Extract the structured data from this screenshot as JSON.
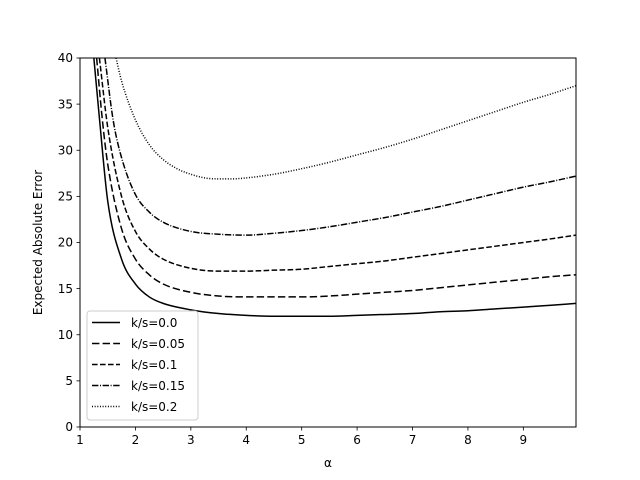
{
  "chart_data": {
    "type": "line",
    "title": "",
    "xlabel": "α",
    "ylabel": "Expected Absolute Error",
    "xlim": [
      1,
      9.95
    ],
    "ylim": [
      0,
      40
    ],
    "xticks": [
      1,
      2,
      3,
      4,
      5,
      6,
      7,
      8,
      9
    ],
    "yticks": [
      0,
      5,
      10,
      15,
      20,
      25,
      30,
      35,
      40
    ],
    "x_tick_labels": [
      "1",
      "2",
      "3",
      "4",
      "5",
      "6",
      "7",
      "8",
      "9"
    ],
    "y_tick_labels": [
      "0",
      "5",
      "10",
      "15",
      "20",
      "25",
      "30",
      "35",
      "40"
    ],
    "grid": false,
    "legend_position": "lower-left",
    "line_color": "#000000",
    "series": [
      {
        "name": "k/s=0.0",
        "style": "solid",
        "points": [
          [
            1.25,
            40
          ],
          [
            1.35,
            33.5
          ],
          [
            1.5,
            24.5
          ],
          [
            1.75,
            18.2
          ],
          [
            2,
            15.5
          ],
          [
            2.25,
            14.1
          ],
          [
            2.5,
            13.4
          ],
          [
            3,
            12.7
          ],
          [
            3.5,
            12.3
          ],
          [
            4,
            12.1
          ],
          [
            4.5,
            12.0
          ],
          [
            5,
            12.0
          ],
          [
            5.5,
            12.0
          ],
          [
            6,
            12.1
          ],
          [
            6.5,
            12.2
          ],
          [
            7,
            12.3
          ],
          [
            7.5,
            12.5
          ],
          [
            8,
            12.6
          ],
          [
            8.5,
            12.8
          ],
          [
            9,
            13.0
          ],
          [
            9.5,
            13.2
          ],
          [
            9.95,
            13.4
          ]
        ]
      },
      {
        "name": "k/s=0.05",
        "style": "dashed",
        "points": [
          [
            1.3,
            40
          ],
          [
            1.4,
            33.5
          ],
          [
            1.5,
            28.5
          ],
          [
            1.75,
            21.5
          ],
          [
            2,
            18.2
          ],
          [
            2.25,
            16.5
          ],
          [
            2.5,
            15.5
          ],
          [
            3,
            14.6
          ],
          [
            3.5,
            14.2
          ],
          [
            4,
            14.1
          ],
          [
            4.5,
            14.1
          ],
          [
            5,
            14.1
          ],
          [
            5.5,
            14.2
          ],
          [
            6,
            14.4
          ],
          [
            6.5,
            14.6
          ],
          [
            7,
            14.8
          ],
          [
            7.5,
            15.1
          ],
          [
            8,
            15.4
          ],
          [
            8.5,
            15.7
          ],
          [
            9,
            16.0
          ],
          [
            9.5,
            16.3
          ],
          [
            9.95,
            16.5
          ]
        ]
      },
      {
        "name": "k/s=0.1",
        "style": "short-dashed",
        "points": [
          [
            1.35,
            40
          ],
          [
            1.5,
            32.5
          ],
          [
            1.75,
            25.0
          ],
          [
            2,
            21.2
          ],
          [
            2.25,
            19.3
          ],
          [
            2.5,
            18.2
          ],
          [
            3,
            17.2
          ],
          [
            3.5,
            16.9
          ],
          [
            4,
            16.9
          ],
          [
            4.5,
            17.0
          ],
          [
            5,
            17.1
          ],
          [
            5.5,
            17.4
          ],
          [
            6,
            17.7
          ],
          [
            6.5,
            18.0
          ],
          [
            7,
            18.4
          ],
          [
            7.5,
            18.8
          ],
          [
            8,
            19.2
          ],
          [
            8.5,
            19.6
          ],
          [
            9,
            20.0
          ],
          [
            9.5,
            20.4
          ],
          [
            9.95,
            20.8
          ]
        ]
      },
      {
        "name": "k/s=0.15",
        "style": "dash-dot",
        "points": [
          [
            1.45,
            40
          ],
          [
            1.6,
            33.2
          ],
          [
            1.75,
            29.2
          ],
          [
            2,
            25.2
          ],
          [
            2.25,
            23.3
          ],
          [
            2.5,
            22.2
          ],
          [
            3,
            21.2
          ],
          [
            3.5,
            20.9
          ],
          [
            4,
            20.8
          ],
          [
            4.5,
            21.0
          ],
          [
            5,
            21.3
          ],
          [
            5.5,
            21.7
          ],
          [
            6,
            22.2
          ],
          [
            6.5,
            22.7
          ],
          [
            7,
            23.3
          ],
          [
            7.5,
            23.9
          ],
          [
            8,
            24.6
          ],
          [
            8.5,
            25.3
          ],
          [
            9,
            26.0
          ],
          [
            9.5,
            26.6
          ],
          [
            9.95,
            27.2
          ]
        ]
      },
      {
        "name": "k/s=0.2",
        "style": "dotted",
        "points": [
          [
            1.65,
            40
          ],
          [
            1.75,
            37.5
          ],
          [
            2,
            33.3
          ],
          [
            2.25,
            30.6
          ],
          [
            2.5,
            29.0
          ],
          [
            2.75,
            28.0
          ],
          [
            3,
            27.4
          ],
          [
            3.25,
            27.0
          ],
          [
            3.5,
            26.9
          ],
          [
            3.75,
            26.9
          ],
          [
            4,
            27.0
          ],
          [
            4.5,
            27.4
          ],
          [
            5,
            28.0
          ],
          [
            5.5,
            28.7
          ],
          [
            6,
            29.5
          ],
          [
            6.5,
            30.3
          ],
          [
            7,
            31.2
          ],
          [
            7.5,
            32.2
          ],
          [
            8,
            33.2
          ],
          [
            8.5,
            34.2
          ],
          [
            9,
            35.2
          ],
          [
            9.5,
            36.1
          ],
          [
            9.95,
            37.0
          ]
        ]
      }
    ]
  }
}
